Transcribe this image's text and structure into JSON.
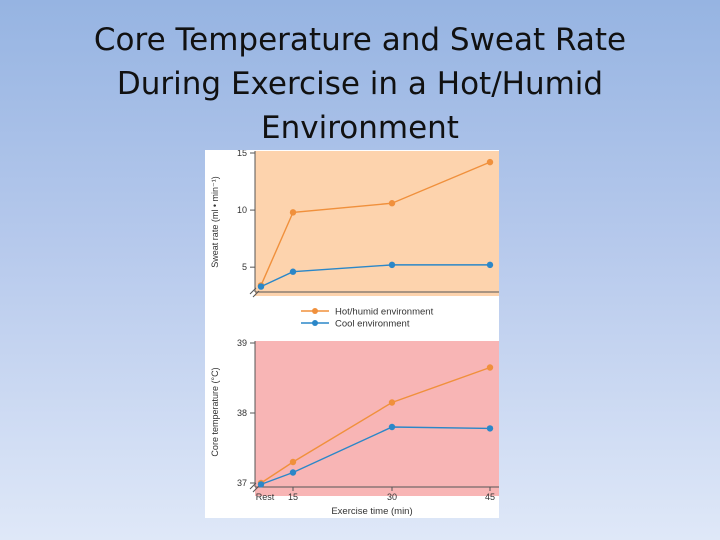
{
  "slide": {
    "title_lines": [
      "Core Temperature and Sweat Rate",
      "During Exercise in a Hot/Humid",
      "Environment"
    ]
  },
  "colors": {
    "hot": "#f0903c",
    "cool": "#2b87c8",
    "top_bg": "#fdd3ad",
    "bottom_bg": "#f8b5b5"
  },
  "legend": {
    "hot_label": "Hot/humid environment",
    "cool_label": "Cool environment"
  },
  "chart_data": [
    {
      "type": "line",
      "ylabel": "Sweat rate (ml • min⁻¹)",
      "ylim": [
        3,
        15
      ],
      "yticks": [
        "5",
        "10",
        "15"
      ],
      "x": [
        0,
        15,
        30,
        45
      ],
      "series": [
        {
          "name": "Hot/humid environment",
          "values": [
            3.4,
            9.8,
            10.6,
            14.2
          ]
        },
        {
          "name": "Cool environment",
          "values": [
            3.3,
            4.6,
            5.2,
            5.2
          ]
        }
      ]
    },
    {
      "type": "line",
      "ylabel": "Core temperature (°C)",
      "xlabel": "Exercise time (min)",
      "ylim": [
        36.9,
        39
      ],
      "yticks": [
        "37",
        "38",
        "39"
      ],
      "xticks": [
        "Rest",
        "15",
        "30",
        "45"
      ],
      "x": [
        0,
        15,
        30,
        45
      ],
      "series": [
        {
          "name": "Hot/humid environment",
          "values": [
            37.0,
            37.3,
            38.15,
            38.65
          ]
        },
        {
          "name": "Cool environment",
          "values": [
            36.98,
            37.15,
            37.8,
            37.78
          ]
        }
      ]
    }
  ]
}
